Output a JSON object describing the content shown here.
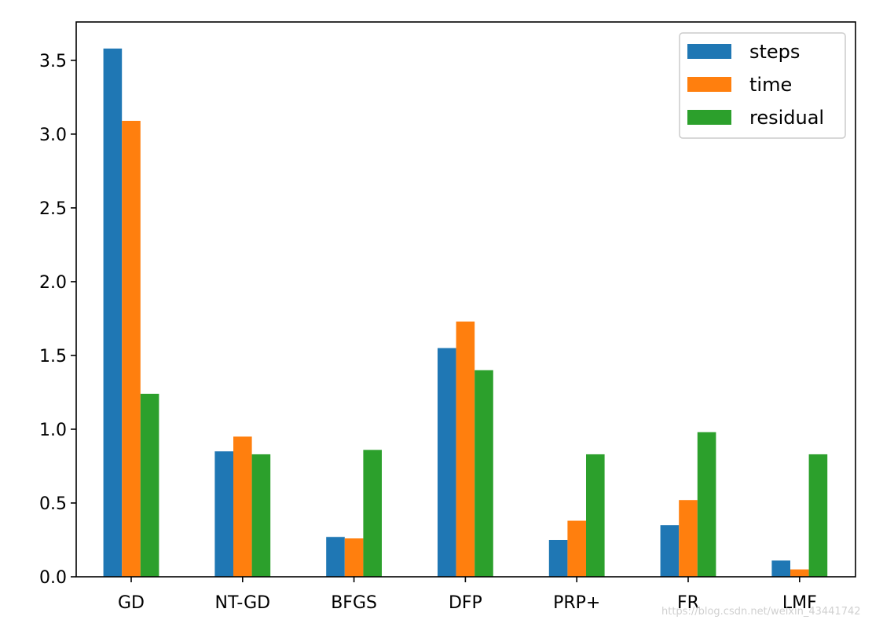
{
  "chart_data": {
    "type": "bar",
    "title": "",
    "xlabel": "",
    "ylabel": "",
    "categories": [
      "GD",
      "NT-GD",
      "BFGS",
      "DFP",
      "PRP+",
      "FR",
      "LMF"
    ],
    "series": [
      {
        "name": "steps",
        "color": "#1f77b4",
        "values": [
          3.58,
          0.85,
          0.27,
          1.55,
          0.25,
          0.35,
          0.11
        ]
      },
      {
        "name": "time",
        "color": "#ff7f0e",
        "values": [
          3.09,
          0.95,
          0.26,
          1.73,
          0.38,
          0.52,
          0.05
        ]
      },
      {
        "name": "residual",
        "color": "#2ca02c",
        "values": [
          1.24,
          0.83,
          0.86,
          1.4,
          0.83,
          0.98,
          0.83
        ]
      }
    ],
    "ylim": [
      0,
      3.76
    ],
    "yticks": [
      "0.0",
      "0.5",
      "1.0",
      "1.5",
      "2.0",
      "2.5",
      "3.0",
      "3.5"
    ],
    "legend_position": "top-right",
    "grid": false
  },
  "watermark": "https://blog.csdn.net/weixin_43441742"
}
